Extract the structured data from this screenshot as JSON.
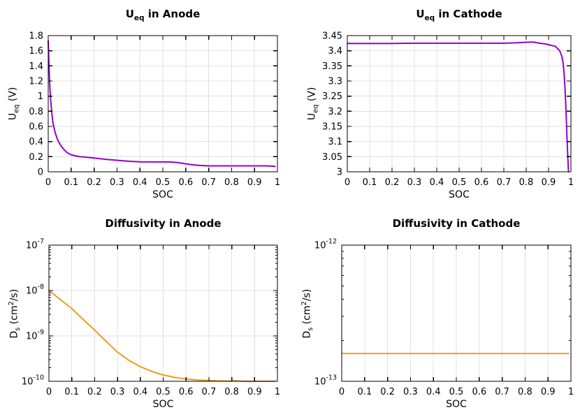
{
  "figure": {
    "background": "#ffffff",
    "grid_color": "#e0e0e0",
    "axis_color": "#000000",
    "accent_purple": "#9400d3",
    "accent_orange": "#e8a020"
  },
  "chart_data": [
    {
      "type": "line",
      "title": "U_eq in Anode",
      "title_parts": {
        "prefix": "U",
        "sub": "eq",
        "rest": " in Anode"
      },
      "xlabel": "SOC",
      "ylabel": "U_eq (V)",
      "ylabel_parts": [
        "U",
        "eq",
        " (V)"
      ],
      "xlim": [
        0,
        1
      ],
      "ylim": [
        0,
        1.8
      ],
      "yscale": "linear",
      "grid": true,
      "legend": "none",
      "xticks": [
        0,
        0.1,
        0.2,
        0.3,
        0.4,
        0.5,
        0.6,
        0.7,
        0.8,
        0.9,
        1
      ],
      "xtick_labels": [
        "0",
        "0.1",
        "0.2",
        "0.3",
        "0.4",
        "0.5",
        "0.6",
        "0.7",
        "0.8",
        "0.9",
        "1"
      ],
      "yticks": [
        0,
        0.2,
        0.4,
        0.6,
        0.8,
        1,
        1.2,
        1.4,
        1.6,
        1.8
      ],
      "ytick_labels": [
        "0",
        "0.2",
        "0.4",
        "0.6",
        "0.8",
        "1",
        "1.2",
        "1.4",
        "1.6",
        "1.8"
      ],
      "line_color": "#9400d3",
      "series": [
        {
          "x": [
            0,
            0.003,
            0.006,
            0.01,
            0.015,
            0.02,
            0.03,
            0.04,
            0.05,
            0.06,
            0.07,
            0.08,
            0.09,
            0.1,
            0.12,
            0.14,
            0.16,
            0.18,
            0.2,
            0.25,
            0.3,
            0.35,
            0.4,
            0.45,
            0.5,
            0.53,
            0.56,
            0.58,
            0.6,
            0.63,
            0.66,
            0.7,
            0.75,
            0.8,
            0.85,
            0.9,
            0.95,
            0.99
          ],
          "y": [
            1.73,
            1.45,
            1.18,
            0.97,
            0.8,
            0.66,
            0.52,
            0.43,
            0.37,
            0.325,
            0.29,
            0.26,
            0.24,
            0.225,
            0.21,
            0.2,
            0.195,
            0.188,
            0.182,
            0.165,
            0.152,
            0.14,
            0.132,
            0.13,
            0.13,
            0.13,
            0.124,
            0.115,
            0.105,
            0.092,
            0.084,
            0.079,
            0.078,
            0.078,
            0.078,
            0.079,
            0.079,
            0.072
          ]
        }
      ]
    },
    {
      "type": "line",
      "title": "U_eq in Cathode",
      "title_parts": {
        "prefix": "U",
        "sub": "eq",
        "rest": " in Cathode"
      },
      "xlabel": "SOC",
      "ylabel": "U_eq (V)",
      "ylabel_parts": [
        "U",
        "eq",
        " (V)"
      ],
      "xlim": [
        0,
        1
      ],
      "ylim": [
        3,
        3.45
      ],
      "yscale": "linear",
      "grid": true,
      "legend": "none",
      "xticks": [
        0,
        0.1,
        0.2,
        0.3,
        0.4,
        0.5,
        0.6,
        0.7,
        0.8,
        0.9,
        1
      ],
      "xtick_labels": [
        "0",
        "0.1",
        "0.2",
        "0.3",
        "0.4",
        "0.5",
        "0.6",
        "0.7",
        "0.8",
        "0.9",
        "1"
      ],
      "yticks": [
        3,
        3.05,
        3.1,
        3.15,
        3.2,
        3.25,
        3.3,
        3.35,
        3.4,
        3.45
      ],
      "ytick_labels": [
        "3",
        "3.05",
        "3.1",
        "3.15",
        "3.2",
        "3.25",
        "3.3",
        "3.35",
        "3.4",
        "3.45"
      ],
      "line_color": "#9400d3",
      "series": [
        {
          "x": [
            0,
            0.1,
            0.2,
            0.3,
            0.4,
            0.5,
            0.6,
            0.7,
            0.75,
            0.8,
            0.83,
            0.86,
            0.89,
            0.91,
            0.93,
            0.95,
            0.96,
            0.965,
            0.97,
            0.974,
            0.978,
            0.982,
            0.986,
            0.989
          ],
          "y": [
            3.424,
            3.424,
            3.424,
            3.425,
            3.425,
            3.425,
            3.425,
            3.425,
            3.426,
            3.428,
            3.429,
            3.425,
            3.422,
            3.418,
            3.415,
            3.4,
            3.38,
            3.36,
            3.32,
            3.27,
            3.2,
            3.12,
            3.05,
            3.0
          ]
        }
      ]
    },
    {
      "type": "line",
      "title": "Diffusivity in Anode",
      "title_parts": {
        "prefix": "Diffusivity in Anode",
        "sub": "",
        "rest": ""
      },
      "xlabel": "SOC",
      "ylabel": "D_s (cm^2/s)",
      "ylabel_parts": [
        "D",
        "s",
        " (cm",
        "2",
        "/s)"
      ],
      "xlim": [
        0,
        1
      ],
      "ylim": [
        1e-10,
        1e-07
      ],
      "yscale": "log",
      "grid": true,
      "legend": "none",
      "xticks": [
        0,
        0.1,
        0.2,
        0.3,
        0.4,
        0.5,
        0.6,
        0.7,
        0.8,
        0.9,
        1
      ],
      "xtick_labels": [
        "0",
        "0.1",
        "0.2",
        "0.3",
        "0.4",
        "0.5",
        "0.6",
        "0.7",
        "0.8",
        "0.9",
        "1"
      ],
      "yticks": [
        1e-10,
        1e-09,
        1e-08,
        1e-07
      ],
      "ytick_labels": [
        "10^-10",
        "10^-9",
        "10^-8",
        "10^-7"
      ],
      "line_color": "#e8a020",
      "series": [
        {
          "x": [
            0,
            0.05,
            0.1,
            0.15,
            0.2,
            0.25,
            0.3,
            0.35,
            0.4,
            0.45,
            0.5,
            0.55,
            0.6,
            0.65,
            0.7,
            0.75,
            0.8,
            0.82,
            0.85,
            0.9,
            0.95,
            0.99
          ],
          "y": [
            1e-08,
            6.3e-09,
            4e-09,
            2.3e-09,
            1.35e-09,
            7.6e-10,
            4.4e-10,
            2.9e-10,
            2.1e-10,
            1.65e-10,
            1.38e-10,
            1.22e-10,
            1.12e-10,
            1.07e-10,
            1.04e-10,
            1.02e-10,
            1.01e-10,
            1.03e-10,
            1e-10,
            1e-10,
            1e-10,
            1e-10
          ]
        }
      ]
    },
    {
      "type": "line",
      "title": "Diffusivity in Cathode",
      "title_parts": {
        "prefix": "Diffusivity in Cathode",
        "sub": "",
        "rest": ""
      },
      "xlabel": "SOC",
      "ylabel": "D_s (cm^2/s)",
      "ylabel_parts": [
        "D",
        "s",
        " (cm",
        "2",
        "/s)"
      ],
      "xlim": [
        0,
        1
      ],
      "ylim": [
        1e-13,
        1e-12
      ],
      "yscale": "log",
      "grid": true,
      "legend": "none",
      "xticks": [
        0,
        0.1,
        0.2,
        0.3,
        0.4,
        0.5,
        0.6,
        0.7,
        0.8,
        0.9,
        1
      ],
      "xtick_labels": [
        "0",
        "0.1",
        "0.2",
        "0.3",
        "0.4",
        "0.5",
        "0.6",
        "0.7",
        "0.8",
        "0.9",
        "1"
      ],
      "yticks": [
        1e-13,
        1e-12
      ],
      "ytick_labels": [
        "10^-13",
        "10^-12"
      ],
      "line_color": "#e8a020",
      "series": [
        {
          "x": [
            0,
            0.99
          ],
          "y": [
            1.6e-13,
            1.6e-13
          ]
        }
      ]
    }
  ]
}
